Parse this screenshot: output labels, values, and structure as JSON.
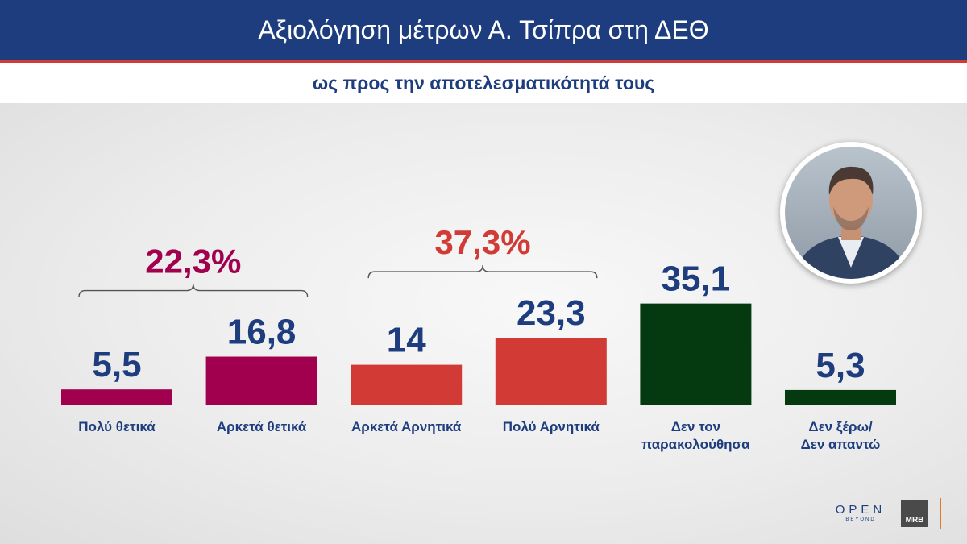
{
  "header": {
    "title": "Αξιολόγηση μέτρων Α. Τσίπρα στη ΔΕΘ"
  },
  "subheader": {
    "subtitle": "ως προς την αποτελεσματικότητά τους"
  },
  "colors": {
    "positive": "#a0004e",
    "negative": "#d23a36",
    "other": "#053a11",
    "text_blue": "#1d3d7e"
  },
  "chart_data": {
    "type": "bar",
    "categories": [
      [
        "Πολύ θετικά"
      ],
      [
        "Αρκετά θετικά"
      ],
      [
        "Αρκετά Αρνητικά"
      ],
      [
        "Πολύ Αρνητικά"
      ],
      [
        "Δεν τον",
        "παρακολούθησα"
      ],
      [
        "Δεν ξέρω/",
        "Δεν απαντώ"
      ]
    ],
    "values": [
      5.5,
      16.8,
      14,
      23.3,
      35.1,
      5.3
    ],
    "value_labels": [
      "5,5",
      "16,8",
      "14",
      "23,3",
      "35,1",
      "5,3"
    ],
    "bar_colors": [
      "#a0004e",
      "#a0004e",
      "#d23a36",
      "#d23a36",
      "#053a11",
      "#053a11"
    ],
    "groups": [
      {
        "label": "22,3%",
        "bars": [
          0,
          1
        ],
        "color": "#a0004e"
      },
      {
        "label": "37,3%",
        "bars": [
          2,
          3
        ],
        "color": "#d23a36"
      }
    ]
  },
  "logos": {
    "open_main": "OPEN",
    "open_sub": "BEYOND",
    "mrb": "MRB"
  },
  "icons": {
    "portrait": "person-portrait-icon"
  }
}
